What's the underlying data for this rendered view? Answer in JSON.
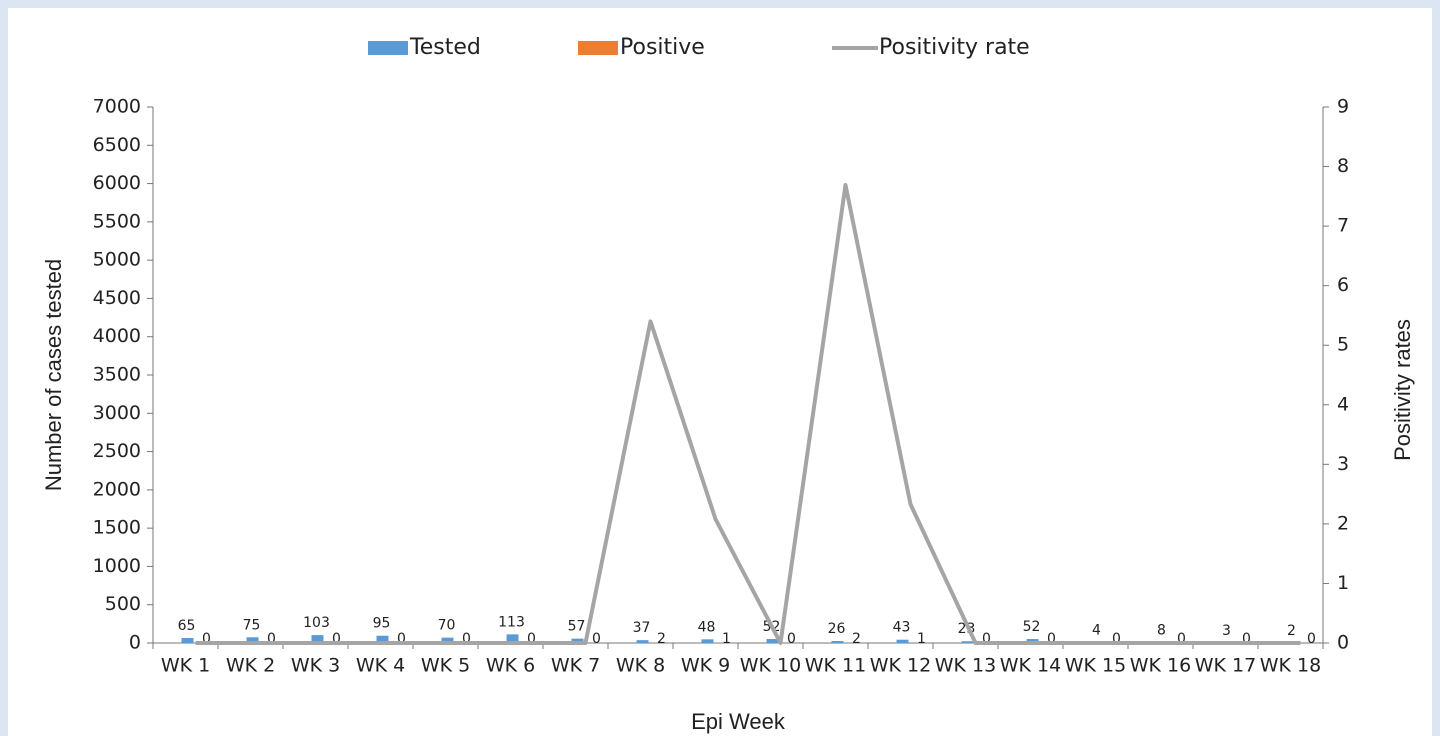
{
  "chart_data": {
    "type": "bar-line",
    "x_label": "Epi Week",
    "y_label": "Number of cases tested",
    "y2_label": "Positivity rates",
    "categories": [
      "WK 1",
      "WK 2",
      "WK 3",
      "WK 4",
      "WK 5",
      "WK 6",
      "WK 7",
      "WK 8",
      "WK 9",
      "WK 10",
      "WK 11",
      "WK 12",
      "WK 13",
      "WK 14",
      "WK 15",
      "WK 16",
      "WK 17",
      "WK 18"
    ],
    "series": [
      {
        "name": "Tested",
        "type": "bar",
        "color": "#5b9bd5",
        "values": [
          65,
          75,
          103,
          95,
          70,
          113,
          57,
          37,
          48,
          52,
          26,
          43,
          23,
          52,
          4,
          8,
          3,
          2
        ]
      },
      {
        "name": "Positive",
        "type": "bar",
        "color": "#ed7d31",
        "values": [
          0,
          0,
          0,
          0,
          0,
          0,
          0,
          2,
          1,
          0,
          2,
          1,
          0,
          0,
          0,
          0,
          0,
          0
        ]
      },
      {
        "name": "Positivity rate",
        "type": "line",
        "axis": "y2",
        "color": "#a5a5a5",
        "values": [
          0,
          0,
          0,
          0,
          0,
          0,
          0,
          5.4,
          2.08,
          0,
          7.69,
          2.33,
          0,
          0,
          0,
          0,
          0,
          0
        ]
      }
    ],
    "ylim": [
      0,
      7000
    ],
    "yticks": [
      0,
      500,
      1000,
      1500,
      2000,
      2500,
      3000,
      3500,
      4000,
      4500,
      5000,
      5500,
      6000,
      6500,
      7000
    ],
    "y2lim": [
      0,
      9
    ],
    "y2ticks": [
      0,
      1,
      2,
      3,
      4,
      5,
      6,
      7,
      8,
      9
    ],
    "legend": "top",
    "data_labels": true
  }
}
